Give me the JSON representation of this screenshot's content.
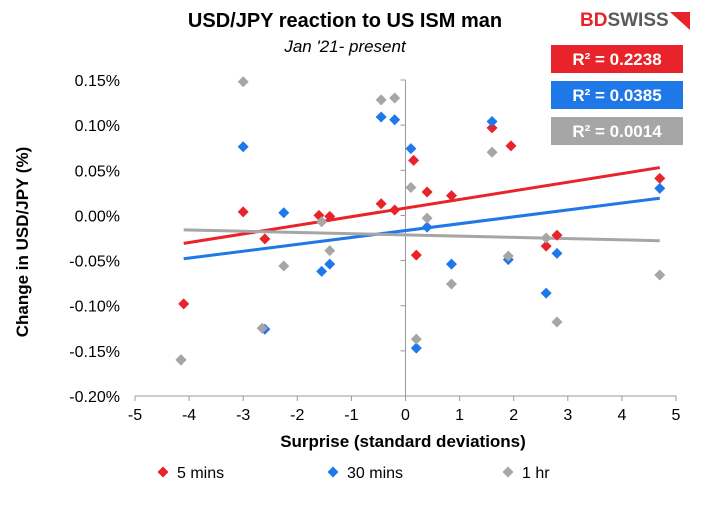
{
  "chart_data": {
    "type": "scatter",
    "title": "USD/JPY reaction to US ISM man",
    "subtitle": "Jan '21- present",
    "xlabel": "Surprise (standard deviations)",
    "ylabel": "Change in USD/JPY  (%)",
    "xlim": [
      -5,
      5
    ],
    "ylim": [
      -0.2,
      0.15
    ],
    "x_ticks": [
      -5,
      -4,
      -3,
      -2,
      -1,
      0,
      1,
      2,
      3,
      4,
      5
    ],
    "x_tick_labels": [
      "-5",
      "-4",
      "-3",
      "-2",
      "-1",
      "0",
      "1",
      "2",
      "3",
      "4",
      "5"
    ],
    "y_ticks": [
      -0.2,
      -0.15,
      -0.1,
      -0.05,
      0,
      0.05,
      0.1,
      0.15
    ],
    "y_tick_labels": [
      "-0.20%",
      "-0.15%",
      "-0.10%",
      "-0.05%",
      "0.00%",
      "0.05%",
      "0.10%",
      "0.15%"
    ],
    "grid": false,
    "legend_position": "bottom",
    "series": [
      {
        "name": "5 mins",
        "color": "#e8232a",
        "marker": "diamond",
        "r2_label": "R² = 0.2238",
        "trend": [
          [
            -4.1,
            -0.031
          ],
          [
            4.7,
            0.053
          ]
        ],
        "points": [
          [
            -4.1,
            -0.098
          ],
          [
            -3.0,
            0.004
          ],
          [
            -2.6,
            -0.026
          ],
          [
            -1.6,
            0.0
          ],
          [
            -1.4,
            -0.001
          ],
          [
            -0.45,
            0.013
          ],
          [
            -0.2,
            0.006
          ],
          [
            0.15,
            0.061
          ],
          [
            0.2,
            -0.044
          ],
          [
            0.4,
            0.026
          ],
          [
            0.85,
            0.022
          ],
          [
            1.6,
            0.097
          ],
          [
            1.95,
            0.077
          ],
          [
            2.6,
            -0.034
          ],
          [
            2.8,
            -0.022
          ],
          [
            4.7,
            0.041
          ]
        ]
      },
      {
        "name": "30 mins",
        "color": "#1f78e8",
        "marker": "diamond",
        "r2_label": "R² = 0.0385",
        "trend": [
          [
            -4.1,
            -0.048
          ],
          [
            4.7,
            0.019
          ]
        ],
        "points": [
          [
            -4.15,
            -0.16
          ],
          [
            -3.0,
            0.076
          ],
          [
            -2.6,
            -0.126
          ],
          [
            -2.25,
            0.003
          ],
          [
            -1.55,
            -0.062
          ],
          [
            -1.4,
            -0.054
          ],
          [
            -0.45,
            0.109
          ],
          [
            -0.2,
            0.106
          ],
          [
            0.1,
            0.074
          ],
          [
            0.2,
            -0.147
          ],
          [
            0.4,
            -0.013
          ],
          [
            0.85,
            -0.054
          ],
          [
            1.6,
            0.104
          ],
          [
            1.9,
            -0.049
          ],
          [
            2.6,
            -0.086
          ],
          [
            2.8,
            -0.042
          ],
          [
            4.7,
            0.03
          ]
        ]
      },
      {
        "name": "1 hr",
        "color": "#a6a6a6",
        "marker": "diamond",
        "r2_label": "R² = 0.0014",
        "trend": [
          [
            -4.1,
            -0.016
          ],
          [
            4.7,
            -0.028
          ]
        ],
        "points": [
          [
            -4.15,
            -0.16
          ],
          [
            -3.0,
            0.148
          ],
          [
            -2.65,
            -0.125
          ],
          [
            -2.25,
            -0.056
          ],
          [
            -1.55,
            -0.007
          ],
          [
            -1.4,
            -0.039
          ],
          [
            -0.45,
            0.128
          ],
          [
            -0.2,
            0.13
          ],
          [
            0.1,
            0.031
          ],
          [
            0.2,
            -0.137
          ],
          [
            0.4,
            -0.003
          ],
          [
            0.85,
            -0.076
          ],
          [
            1.6,
            0.07
          ],
          [
            1.9,
            -0.045
          ],
          [
            2.6,
            -0.025
          ],
          [
            2.8,
            -0.118
          ],
          [
            4.7,
            -0.066
          ]
        ]
      }
    ]
  },
  "logo": {
    "text_bd": "BD",
    "text_swiss": "SWISS",
    "color_bd": "#e8232a",
    "color_swiss": "#5a5a5a"
  }
}
